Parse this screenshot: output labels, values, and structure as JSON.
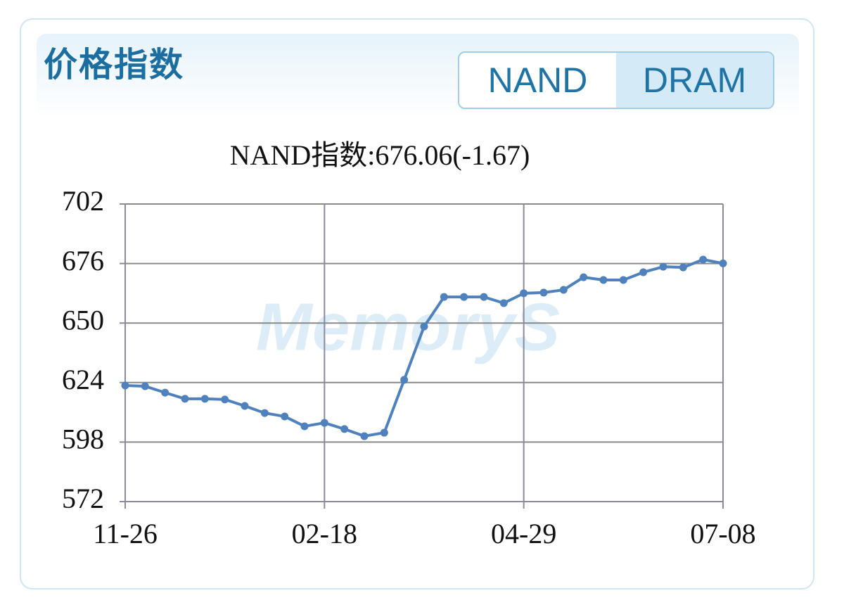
{
  "header": {
    "title": "价格指数"
  },
  "tabs": [
    "NAND",
    "DRAM"
  ],
  "chart_data": {
    "type": "line",
    "title": "NAND指数:676.06(-1.67)",
    "watermark": "MemoryS",
    "categories": [
      "11-26",
      null,
      null,
      null,
      null,
      null,
      null,
      null,
      null,
      null,
      "02-18",
      null,
      null,
      null,
      null,
      null,
      null,
      null,
      null,
      null,
      "04-29",
      null,
      null,
      null,
      null,
      null,
      null,
      null,
      null,
      null,
      "07-08"
    ],
    "values": [
      622.7,
      622.4,
      619.6,
      616.9,
      616.9,
      616.6,
      613.8,
      610.7,
      609.2,
      604.9,
      606.4,
      603.7,
      600.6,
      602.1,
      625.2,
      648.5,
      661.4,
      661.4,
      661.4,
      658.7,
      663.0,
      663.3,
      664.5,
      670.0,
      668.8,
      668.8,
      672.2,
      674.6,
      674.3,
      677.73,
      676.06
    ],
    "color": "#4f81bd",
    "ylim": [
      572,
      702
    ],
    "yticks": [
      572,
      598,
      624,
      650,
      676,
      702
    ],
    "grid": true
  }
}
